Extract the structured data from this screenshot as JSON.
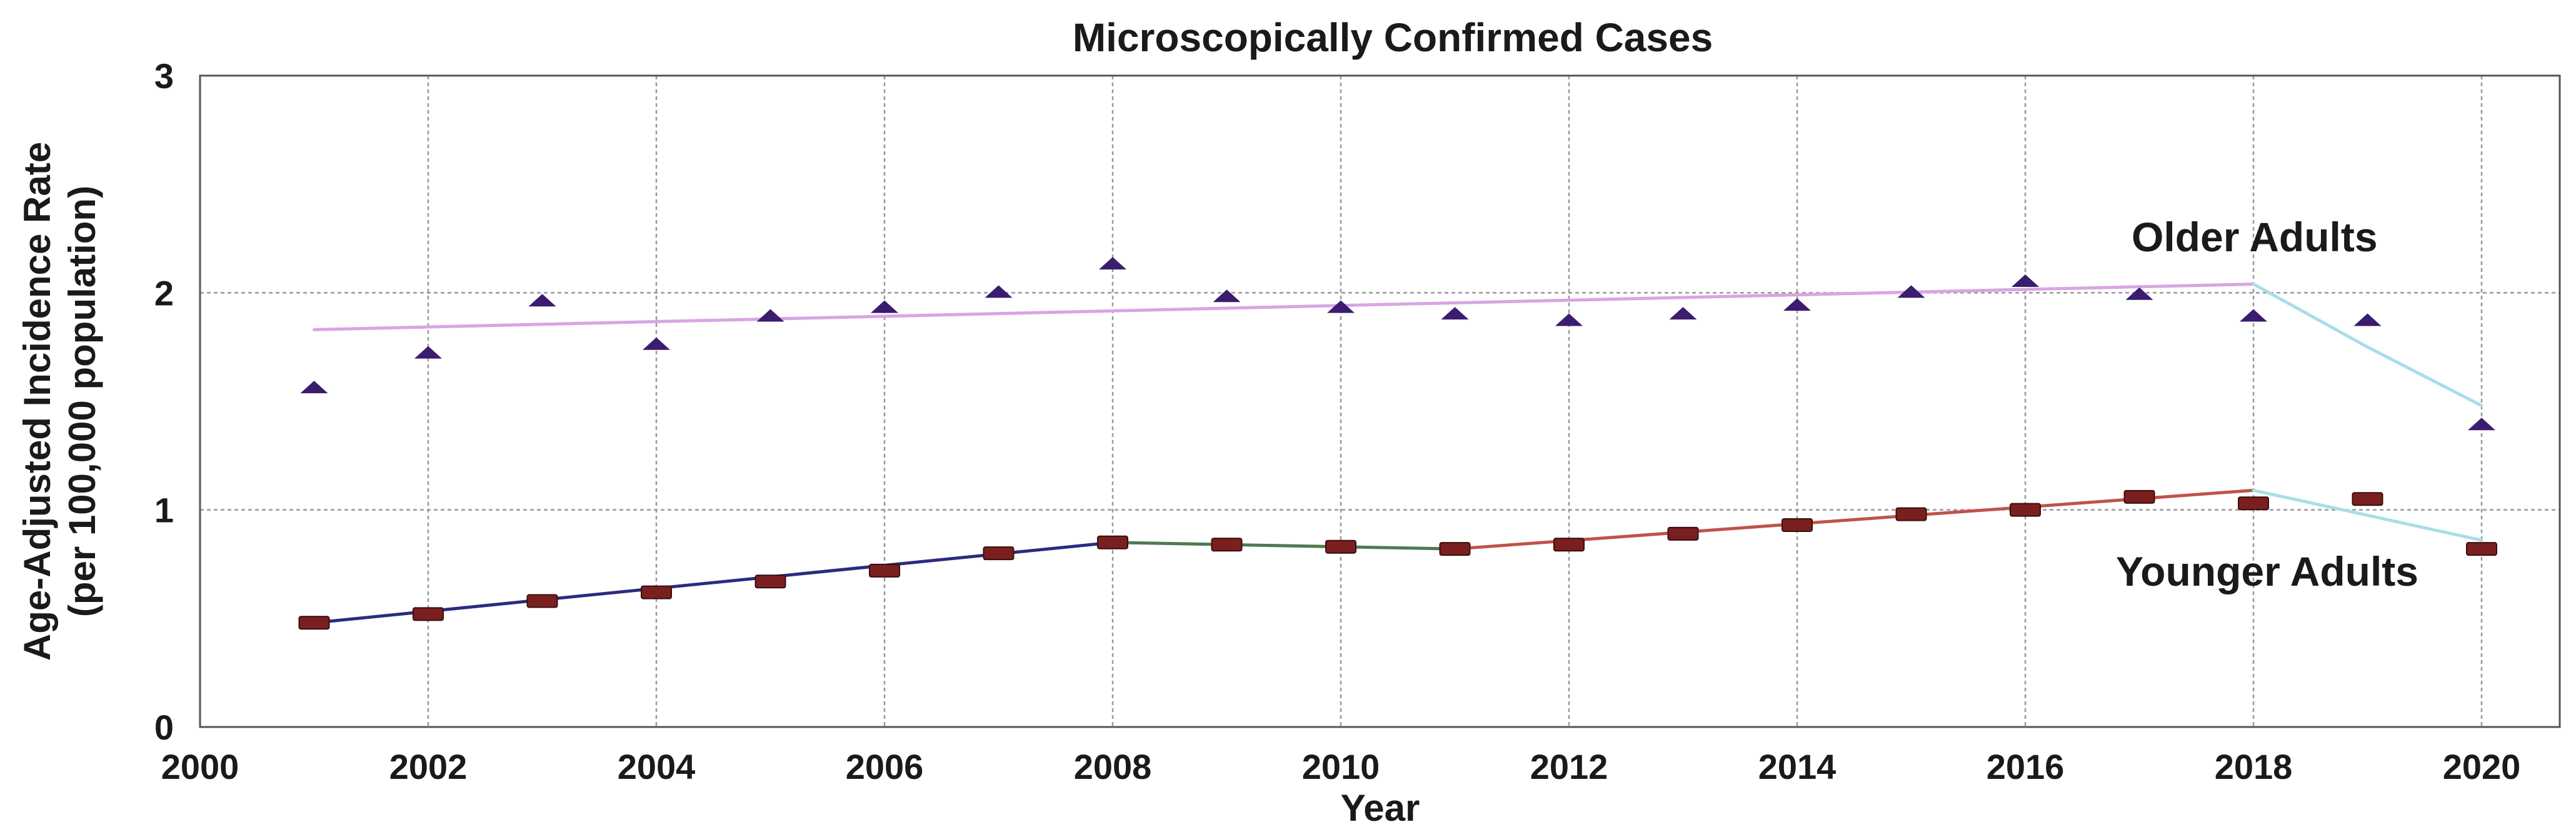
{
  "chart_data": {
    "type": "scatter",
    "title": "Microscopically Confirmed Cases",
    "xlabel": "Year",
    "ylabel_line1": "Age-Adjusted Incidence Rate",
    "ylabel_line2": "(per 100,000 population)",
    "xlim": [
      2000,
      2021
    ],
    "ylim": [
      0,
      3
    ],
    "x_ticks": [
      2000,
      2002,
      2004,
      2006,
      2008,
      2010,
      2012,
      2014,
      2016,
      2018,
      2020
    ],
    "x_tick_labels": [
      "2000",
      "2002",
      "2004",
      "2006",
      "2008",
      "2010",
      "2012",
      "2014",
      "2016",
      "2018",
      "2020"
    ],
    "y_ticks": [
      0,
      1,
      2,
      3
    ],
    "y_tick_labels": [
      "0",
      "1",
      "2",
      "3"
    ],
    "grid": true,
    "series": [
      {
        "name": "Older Adults",
        "marker": "triangle",
        "color": "#3b1c6e",
        "x": [
          2001,
          2002,
          2003,
          2004,
          2005,
          2006,
          2007,
          2008,
          2009,
          2010,
          2011,
          2012,
          2013,
          2014,
          2015,
          2016,
          2017,
          2018,
          2019,
          2020
        ],
        "values": [
          1.56,
          1.72,
          1.96,
          1.76,
          1.89,
          1.93,
          2.0,
          2.13,
          1.98,
          1.93,
          1.9,
          1.87,
          1.9,
          1.94,
          2.0,
          2.05,
          1.99,
          1.89,
          1.87,
          1.39
        ]
      },
      {
        "name": "Younger Adults",
        "marker": "bar",
        "color": "#7a1f1f",
        "x": [
          2001,
          2002,
          2003,
          2004,
          2005,
          2006,
          2007,
          2008,
          2009,
          2010,
          2011,
          2012,
          2013,
          2014,
          2015,
          2016,
          2017,
          2018,
          2019,
          2020
        ],
        "values": [
          0.48,
          0.52,
          0.58,
          0.62,
          0.67,
          0.72,
          0.8,
          0.85,
          0.84,
          0.83,
          0.82,
          0.84,
          0.89,
          0.93,
          0.98,
          1.0,
          1.06,
          1.03,
          1.05,
          0.82
        ]
      }
    ],
    "trend_lines": [
      {
        "series": "Older Adults",
        "color": "#d9a5e3",
        "x": [
          2001,
          2018
        ],
        "values": [
          1.83,
          2.04
        ]
      },
      {
        "series": "Older Adults",
        "color": "#a8dde8",
        "x": [
          2018,
          2019,
          2020
        ],
        "values": [
          2.04,
          1.75,
          1.48
        ]
      },
      {
        "series": "Younger Adults",
        "color": "#2b2b80",
        "x": [
          2001,
          2008
        ],
        "values": [
          0.48,
          0.85
        ]
      },
      {
        "series": "Younger Adults",
        "color": "#4f7a52",
        "x": [
          2008,
          2011
        ],
        "values": [
          0.85,
          0.82
        ]
      },
      {
        "series": "Younger Adults",
        "color": "#c0524a",
        "x": [
          2011,
          2018
        ],
        "values": [
          0.82,
          1.09
        ]
      },
      {
        "series": "Younger Adults",
        "color": "#a8dde8",
        "x": [
          2018,
          2020
        ],
        "values": [
          1.09,
          0.86
        ]
      }
    ],
    "annotations": [
      {
        "text": "Older Adults",
        "series": "Older Adults"
      },
      {
        "text": "Younger Adults",
        "series": "Younger Adults"
      }
    ]
  }
}
